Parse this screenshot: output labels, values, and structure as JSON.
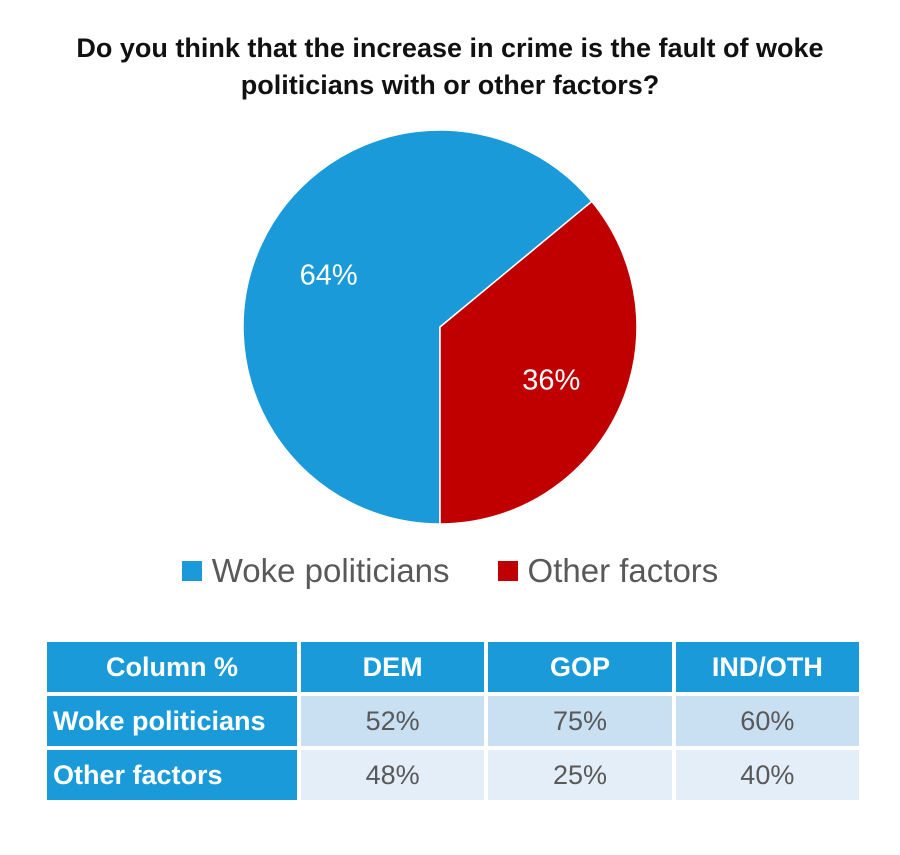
{
  "chart_data": {
    "type": "pie",
    "title": "Do you think that the increase in crime is the fault of woke politicians with or other factors?",
    "slices": [
      {
        "label": "Woke politicians",
        "value": 64,
        "display": "64%",
        "color": "#1a9ad9"
      },
      {
        "label": "Other factors",
        "value": 36,
        "display": "36%",
        "color": "#c00000"
      }
    ],
    "legend": {
      "position": "bottom"
    }
  },
  "crosstab": {
    "header": [
      "Column %",
      "DEM",
      "GOP",
      "IND/OTH"
    ],
    "rows": [
      {
        "label": "Woke politicians",
        "values": [
          "52%",
          "75%",
          "60%"
        ]
      },
      {
        "label": "Other factors",
        "values": [
          "48%",
          "25%",
          "40%"
        ]
      }
    ]
  },
  "colors": {
    "accent": "#1a9ad9",
    "red": "#c00000",
    "row_light": "#c9dff2",
    "row_lighter": "#e4eef8"
  }
}
